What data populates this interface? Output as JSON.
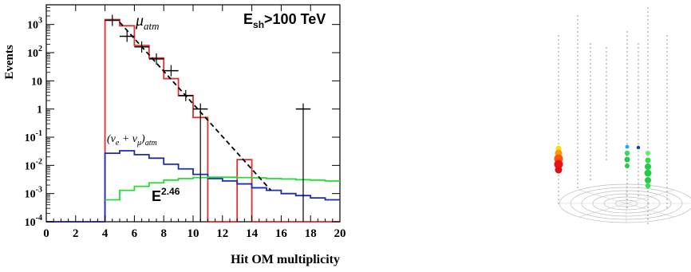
{
  "chart_data": {
    "type": "histogram",
    "title": "",
    "ylabel": "Events",
    "xlabel": "Hit OM multiplicity",
    "x_ticks": [
      0,
      2,
      4,
      6,
      8,
      10,
      12,
      14,
      16,
      18,
      20
    ],
    "y_ticks": [
      "10^-4",
      "10^-3",
      "10^-2",
      "10^-1",
      "1",
      "10",
      "10^2",
      "10^3"
    ],
    "y_scale": "log",
    "xlim": [
      0,
      20
    ],
    "ylim": [
      0.0001,
      5000
    ],
    "annotations": {
      "cut": "E_sh>100 TeV",
      "muon": "μ_atm",
      "neutrino": "(ν_e + ν_μ)_atm",
      "spectrum": "E^2.46"
    },
    "series": [
      {
        "name": "μ_atm",
        "kind": "step",
        "color": "#e03030",
        "edges": [
          0,
          4,
          5,
          6,
          7,
          8,
          9,
          10,
          11,
          12,
          13,
          14,
          20
        ],
        "values": [
          0.0001,
          1500,
          900,
          180,
          65,
          12,
          3,
          0.5,
          0.0001,
          0.0001,
          0.016,
          0.0001
        ]
      },
      {
        "name": "(ν_e + ν_μ)_atm",
        "kind": "step",
        "color": "#1c2bb0",
        "edges": [
          0,
          4,
          5,
          6,
          7,
          8,
          9,
          10,
          11,
          12,
          13,
          14,
          15,
          16,
          17,
          18,
          19,
          20
        ],
        "values": [
          0.0001,
          0.027,
          0.033,
          0.024,
          0.018,
          0.011,
          0.0075,
          0.0048,
          0.0034,
          0.0028,
          0.0022,
          0.0016,
          0.0013,
          0.001,
          0.00085,
          0.0007,
          0.0006
        ]
      },
      {
        "name": "E^2.46",
        "kind": "step",
        "color": "#22dd33",
        "edges": [
          4,
          5,
          6,
          7,
          8,
          9,
          10,
          11,
          12,
          13,
          14,
          15,
          16,
          17,
          18,
          19,
          20
        ],
        "values": [
          0.0006,
          0.0013,
          0.0018,
          0.0024,
          0.003,
          0.0034,
          0.0037,
          0.0038,
          0.0038,
          0.0037,
          0.0036,
          0.0034,
          0.0033,
          0.0031,
          0.003,
          0.0028
        ]
      },
      {
        "name": "data",
        "kind": "points",
        "color": "#000000",
        "x": [
          4.5,
          5.5,
          6.5,
          7.5,
          8.5,
          9.5,
          10.5,
          17.5
        ],
        "y": [
          1400,
          380,
          160,
          60,
          23,
          3,
          1,
          1
        ],
        "x_half_width": 0.5
      },
      {
        "name": "fit",
        "kind": "dashed",
        "color": "#000000",
        "x": [
          5,
          15.3
        ],
        "y": [
          1200,
          0.0013
        ]
      }
    ]
  },
  "detector_view": {
    "description_icon": "neutrino-telescope-event-display",
    "strings": 8
  }
}
